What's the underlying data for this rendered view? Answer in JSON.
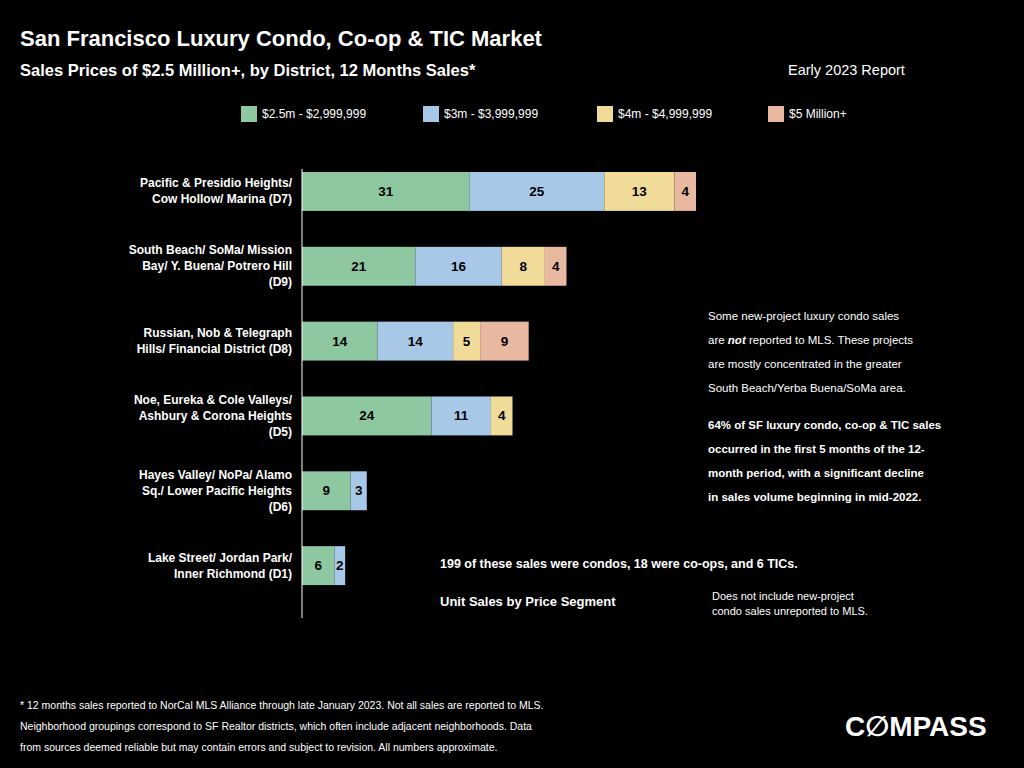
{
  "chart_data": {
    "type": "bar",
    "orientation": "horizontal",
    "stacked": true,
    "data_labels": true,
    "tick_labels": false,
    "grid": false,
    "legend": "top",
    "title": "San Francisco Luxury Condo, Co-op & TIC Market",
    "subtitle": "Sales Prices of $2.5 Million+, by District, 12 Months Sales*",
    "xlabel": "Unit Sales by Price Segment",
    "xlim": [
      0,
      73
    ],
    "categories": [
      "Pacific & Presidio Heights/\nCow Hollow/ Marina (D7)",
      "South Beach/ SoMa/ Mission\nBay/ Y. Buena/ Potrero Hill\n(D9)",
      "Russian, Nob & Telegraph\nHills/ Financial District (D8)",
      "Noe, Eureka & Cole Valleys/\nAshbury & Corona Heights\n(D5)",
      "Hayes Valley/ NoPa/ Alamo\nSq./ Lower Pacific Heights\n(D6)",
      "Lake Street/ Jordan Park/\nInner Richmond (D1)"
    ],
    "series": [
      {
        "name": "$2.5m - $2,999,999",
        "color": "#8DC8A0",
        "values": [
          31,
          21,
          14,
          24,
          9,
          6
        ]
      },
      {
        "name": "$3m - $3,999,999",
        "color": "#A8C8E8",
        "values": [
          25,
          16,
          14,
          11,
          3,
          2
        ]
      },
      {
        "name": "$4m - $4,999,999",
        "color": "#F0DC98",
        "values": [
          13,
          8,
          5,
          4,
          0,
          0
        ]
      },
      {
        "name": "$5 Million+",
        "color": "#E8B8A0",
        "values": [
          4,
          4,
          9,
          0,
          0,
          0
        ]
      }
    ],
    "annotations": [
      [
        "Early 2023 Report"
      ],
      [
        "Some new-project luxury condo sales",
        [
          "are ",
          "not",
          " reported to MLS. These projects"
        ],
        "are mostly concentrated in the greater",
        "South Beach/Yerba Buena/SoMa area."
      ],
      [
        "64% of SF luxury condo, co-op & TIC sales",
        "occurred in the first 5 months of the 12-",
        "month period, with a significant decline",
        "in sales volume beginning in mid-2022."
      ],
      [
        "199 of these sales were condos, 18 were co-ops, and 6 TICs."
      ],
      [
        "Does not include new-project",
        "condo sales unreported to MLS."
      ],
      [
        "C∅MPASS"
      ]
    ],
    "footnote": [
      "* 12 months sales reported to NorCal MLS Alliance through late January 2023. Not all sales are reported to MLS.",
      "Neighborhood groupings correspond to SF Realtor districts, which often include adjacent neighborhoods. Data",
      "from sources deemed reliable but may contain errors and subject to revision. All numbers approximate."
    ]
  }
}
